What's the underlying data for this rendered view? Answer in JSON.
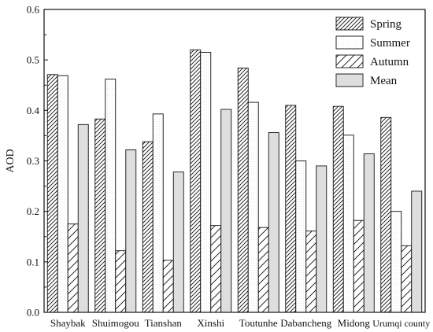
{
  "chart_data": {
    "type": "bar",
    "title": "",
    "xlabel": "",
    "ylabel": "AOD",
    "ylim": [
      0,
      0.6
    ],
    "yticks": [
      0.0,
      0.1,
      0.2,
      0.3,
      0.4,
      0.5,
      0.6
    ],
    "ytick_labels": [
      "0.0",
      "0.1",
      "0.2",
      "0.3",
      "0.4",
      "0.5",
      "0.6"
    ],
    "categories": [
      "Shaybak",
      "Shuimogou",
      "Tianshan",
      "Xinshi",
      "Toutunhe",
      "Dabancheng",
      "Midong",
      "Urumqi county"
    ],
    "series": [
      {
        "name": "Spring",
        "pattern": "hatch-dense",
        "values": [
          0.471,
          0.383,
          0.338,
          0.52,
          0.484,
          0.41,
          0.408,
          0.386
        ]
      },
      {
        "name": "Summer",
        "pattern": "light",
        "values": [
          0.469,
          0.462,
          0.393,
          0.515,
          0.416,
          0.3,
          0.351,
          0.2
        ]
      },
      {
        "name": "Autumn",
        "pattern": "hatch-sparse",
        "values": [
          0.175,
          0.122,
          0.103,
          0.172,
          0.168,
          0.161,
          0.182,
          0.132
        ]
      },
      {
        "name": "Mean",
        "pattern": "dotted",
        "values": [
          0.372,
          0.322,
          0.278,
          0.402,
          0.356,
          0.29,
          0.314,
          0.24
        ]
      }
    ],
    "legend_position": "top-right",
    "grid": false
  }
}
